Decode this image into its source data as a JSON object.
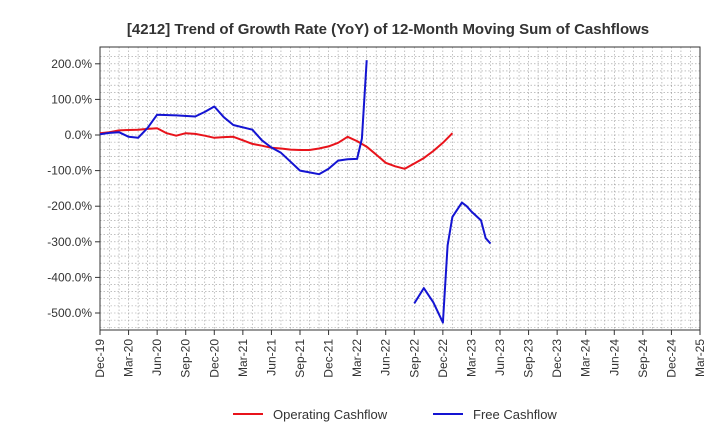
{
  "chart_data": {
    "type": "line",
    "title": "[4212]  Trend of Growth Rate (YoY) of 12-Month Moving Sum of Cashflows",
    "xlabel": "",
    "ylabel": "",
    "x_tick_labels": [
      "Dec-19",
      "Mar-20",
      "Jun-20",
      "Sep-20",
      "Dec-20",
      "Mar-21",
      "Jun-21",
      "Sep-21",
      "Dec-21",
      "Mar-22",
      "Jun-22",
      "Sep-22",
      "Dec-22",
      "Mar-23",
      "Jun-23",
      "Sep-23",
      "Dec-23",
      "Mar-24",
      "Jun-24",
      "Sep-24",
      "Dec-24",
      "Mar-25"
    ],
    "y_ticks": [
      200,
      100,
      0,
      -100,
      -200,
      -300,
      -400,
      -500
    ],
    "y_tick_labels": [
      "200.0%",
      "100.0%",
      "0.0%",
      "-100.0%",
      "-200.0%",
      "-300.0%",
      "-400.0%",
      "-500.0%"
    ],
    "ylim": [
      -550,
      230
    ],
    "grid": true,
    "legend_position": "bottom",
    "series": [
      {
        "name": "Operating Cashflow",
        "color": "#e8131b",
        "points": [
          [
            0,
            5
          ],
          [
            1,
            8
          ],
          [
            2,
            13
          ],
          [
            3,
            14
          ],
          [
            4,
            15
          ],
          [
            5,
            17
          ],
          [
            6,
            19
          ],
          [
            7,
            5
          ],
          [
            8,
            -2
          ],
          [
            9,
            5
          ],
          [
            10,
            3
          ],
          [
            11,
            -2
          ],
          [
            12,
            -8
          ],
          [
            13,
            -6
          ],
          [
            14,
            -5
          ],
          [
            15,
            -15
          ],
          [
            16,
            -25
          ],
          [
            17,
            -30
          ],
          [
            18,
            -36
          ],
          [
            19,
            -38
          ],
          [
            20,
            -41
          ],
          [
            21,
            -42
          ],
          [
            22,
            -42
          ],
          [
            23,
            -38
          ],
          [
            24,
            -32
          ],
          [
            25,
            -22
          ],
          [
            26,
            -5
          ],
          [
            27,
            -17
          ],
          [
            28,
            -33
          ],
          [
            29,
            -55
          ],
          [
            30,
            -78
          ],
          [
            31,
            -88
          ],
          [
            32,
            -95
          ],
          [
            33,
            -80
          ],
          [
            34,
            -65
          ],
          [
            35,
            -45
          ],
          [
            36,
            -22
          ],
          [
            37,
            5
          ]
        ]
      },
      {
        "name": "Free Cashflow",
        "color": "#1414d2",
        "points": [
          [
            0,
            2
          ],
          [
            1,
            6
          ],
          [
            2,
            8
          ],
          [
            3,
            -5
          ],
          [
            4,
            -8
          ],
          [
            5,
            20
          ],
          [
            6,
            57
          ],
          [
            8,
            55
          ],
          [
            10,
            52
          ],
          [
            11,
            65
          ],
          [
            12,
            80
          ],
          [
            13,
            50
          ],
          [
            14,
            28
          ],
          [
            16,
            15
          ],
          [
            17,
            -15
          ],
          [
            18,
            -35
          ],
          [
            19,
            -50
          ],
          [
            20,
            -75
          ],
          [
            21,
            -100
          ],
          [
            22,
            -105
          ],
          [
            23,
            -110
          ],
          [
            24,
            -95
          ],
          [
            25,
            -72
          ],
          [
            26,
            -68
          ],
          [
            27,
            -67
          ],
          [
            27.5,
            -10
          ],
          [
            28,
            210
          ],
          [
            33,
            -473
          ],
          [
            34,
            -430
          ],
          [
            35,
            -470
          ],
          [
            36,
            -527
          ],
          [
            36.5,
            -310
          ],
          [
            37,
            -230
          ],
          [
            38,
            -190
          ],
          [
            38.5,
            -200
          ],
          [
            39,
            -215
          ],
          [
            40,
            -240
          ],
          [
            40.5,
            -290
          ],
          [
            41,
            -305
          ]
        ]
      }
    ]
  }
}
